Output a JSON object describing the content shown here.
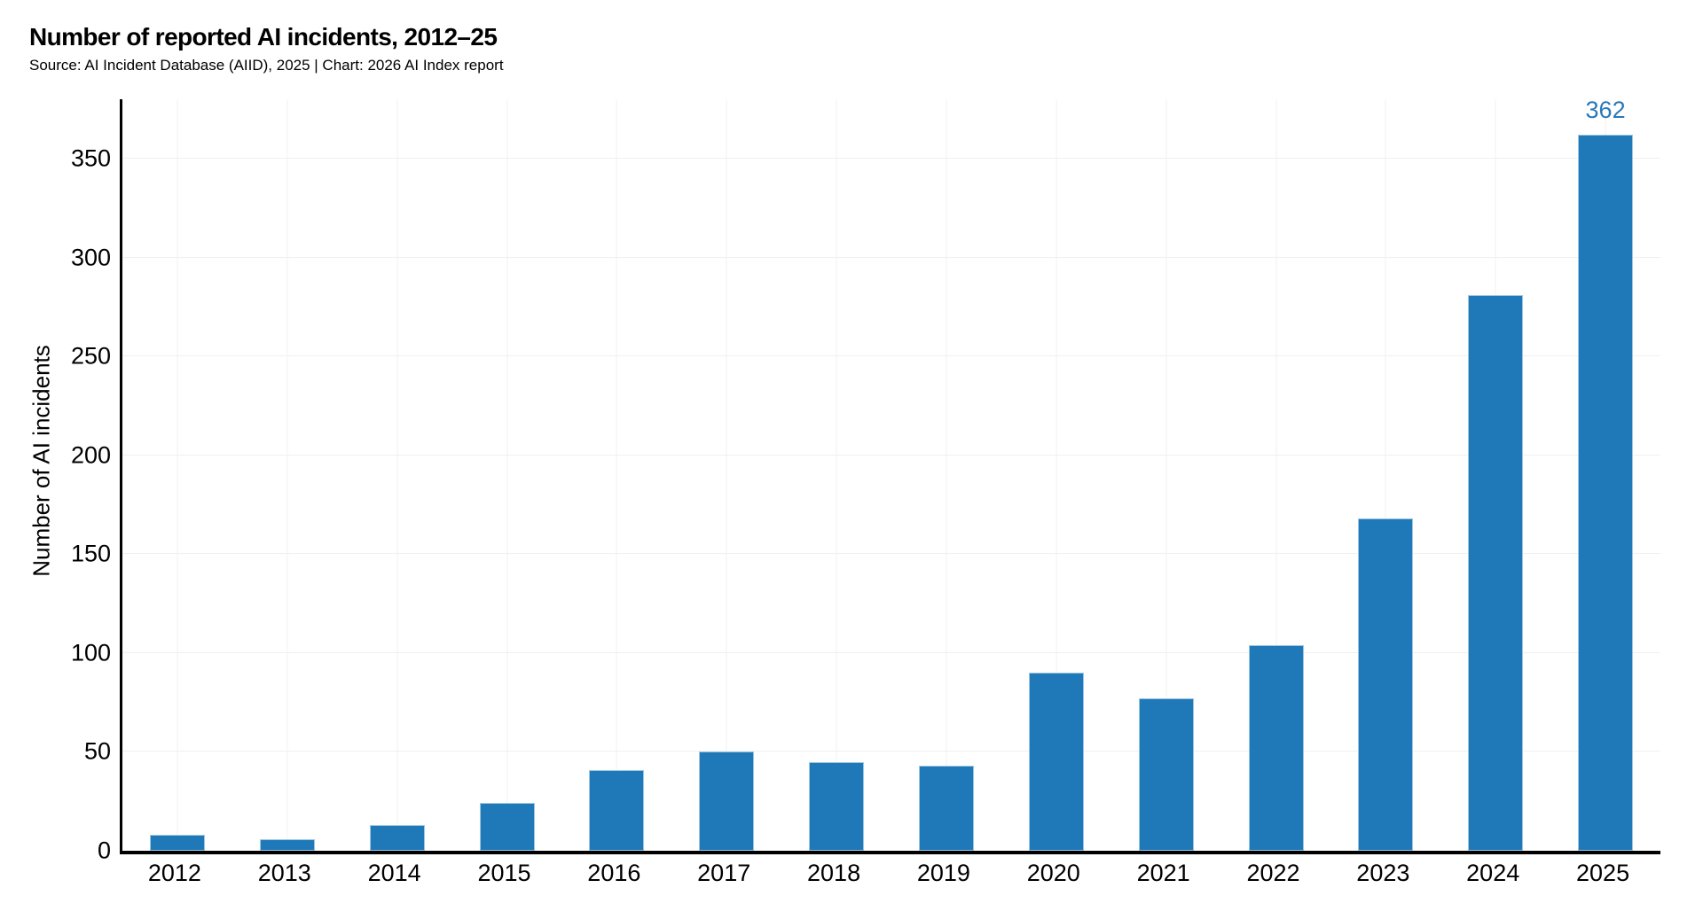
{
  "header": {
    "title": "Number of reported AI incidents, 2012–25",
    "subtitle": "Source: AI Incident Database (AIID), 2025 | Chart: 2026 AI Index report"
  },
  "chart_data": {
    "type": "bar",
    "title": "Number of reported AI incidents, 2012–25",
    "categories": [
      "2012",
      "2013",
      "2014",
      "2015",
      "2016",
      "2017",
      "2018",
      "2019",
      "2020",
      "2021",
      "2022",
      "2023",
      "2024",
      "2025"
    ],
    "values": [
      8,
      6,
      13,
      24,
      41,
      50,
      45,
      43,
      90,
      77,
      104,
      168,
      281,
      362
    ],
    "xlabel": "",
    "ylabel": "Number of AI incidents",
    "ylim": [
      0,
      380
    ],
    "yticks": [
      0,
      50,
      100,
      150,
      200,
      250,
      300,
      350
    ],
    "grid": true,
    "legend_position": "none",
    "data_labels": [
      {
        "category": "2025",
        "text": "362"
      }
    ],
    "colors": {
      "bar": "#1f78b8",
      "bar_edge": "#9dc7e0",
      "data_label": "#2979b9",
      "grid_line": "#f0f0f0",
      "axis_line": "#000000",
      "background": "#ffffff"
    }
  }
}
